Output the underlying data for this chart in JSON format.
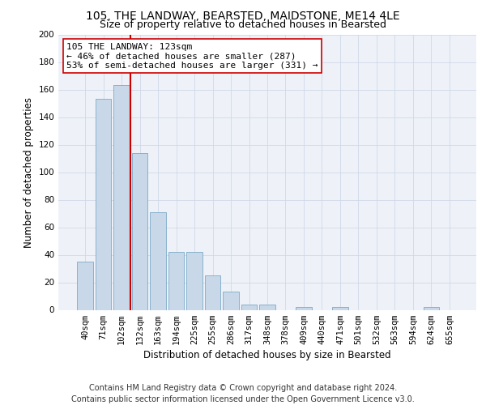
{
  "title": "105, THE LANDWAY, BEARSTED, MAIDSTONE, ME14 4LE",
  "subtitle": "Size of property relative to detached houses in Bearsted",
  "xlabel": "Distribution of detached houses by size in Bearsted",
  "ylabel": "Number of detached properties",
  "categories": [
    "40sqm",
    "71sqm",
    "102sqm",
    "132sqm",
    "163sqm",
    "194sqm",
    "225sqm",
    "255sqm",
    "286sqm",
    "317sqm",
    "348sqm",
    "378sqm",
    "409sqm",
    "440sqm",
    "471sqm",
    "501sqm",
    "532sqm",
    "563sqm",
    "594sqm",
    "624sqm",
    "655sqm"
  ],
  "bar_values": [
    35,
    153,
    163,
    114,
    71,
    42,
    42,
    25,
    13,
    4,
    4,
    0,
    2,
    0,
    2,
    0,
    0,
    0,
    0,
    2,
    0
  ],
  "bar_color": "#c8d8e8",
  "bar_edgecolor": "#7baac8",
  "vline_color": "#cc0000",
  "annotation_text": "105 THE LANDWAY: 123sqm\n← 46% of detached houses are smaller (287)\n53% of semi-detached houses are larger (331) →",
  "annotation_box_facecolor": "#ffffff",
  "annotation_box_edgecolor": "#cc0000",
  "ylim": [
    0,
    200
  ],
  "yticks": [
    0,
    20,
    40,
    60,
    80,
    100,
    120,
    140,
    160,
    180,
    200
  ],
  "grid_color": "#d0d8e8",
  "bg_color": "#eef2f8",
  "footer_line1": "Contains HM Land Registry data © Crown copyright and database right 2024.",
  "footer_line2": "Contains public sector information licensed under the Open Government Licence v3.0.",
  "title_fontsize": 10,
  "subtitle_fontsize": 9,
  "axis_label_fontsize": 8.5,
  "tick_fontsize": 7.5,
  "annotation_fontsize": 8,
  "footer_fontsize": 7
}
